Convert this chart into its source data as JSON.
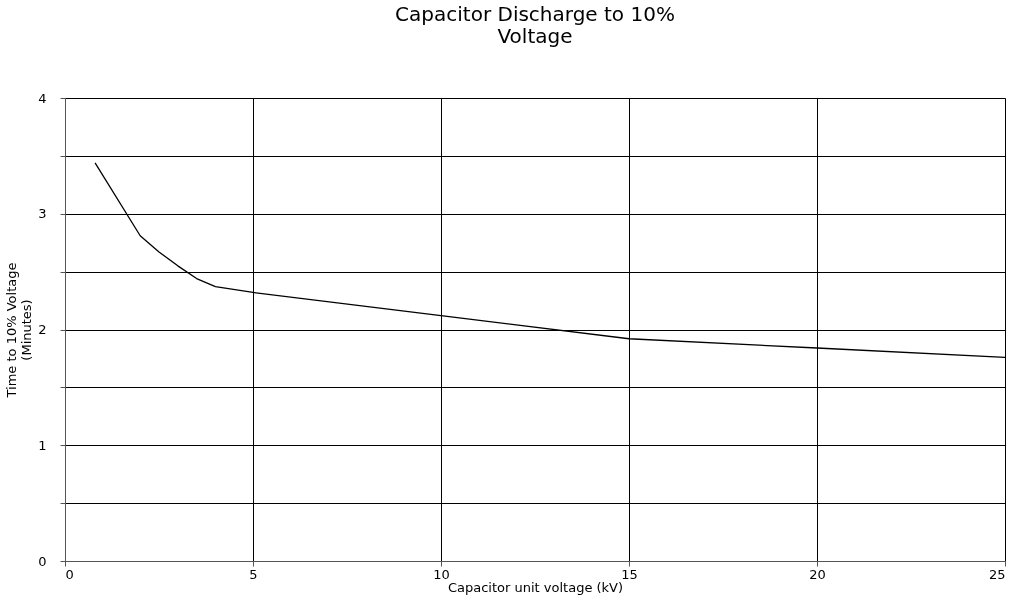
{
  "chart_data": {
    "type": "line",
    "title": "Capacitor Discharge to 10%\nVoltage",
    "xlabel": "Capacitor unit voltage (kV)",
    "ylabel": "Time to 10% Voltage\n(Minutes)",
    "x": [
      0.8,
      2,
      2.5,
      3,
      3.5,
      4,
      5,
      10,
      15,
      20,
      25
    ],
    "series": [
      {
        "color": "#000000",
        "values": [
          3.44,
          2.81,
          2.67,
          2.55,
          2.44,
          2.37,
          2.32,
          2.12,
          1.92,
          1.84,
          1.76
        ]
      }
    ],
    "xlim": [
      0,
      25
    ],
    "xticks": [
      0,
      5,
      10,
      15,
      20,
      25
    ],
    "ylim": [
      0,
      4
    ],
    "yticks": [
      0,
      {
        "value": 0.5,
        "label": null
      },
      1,
      {
        "value": 1.5,
        "label": null
      },
      2,
      {
        "value": 2.5,
        "label": null
      },
      3,
      {
        "value": 3.5,
        "label": null
      },
      4
    ],
    "grid": true,
    "marker": "none",
    "line_style": "solid"
  }
}
